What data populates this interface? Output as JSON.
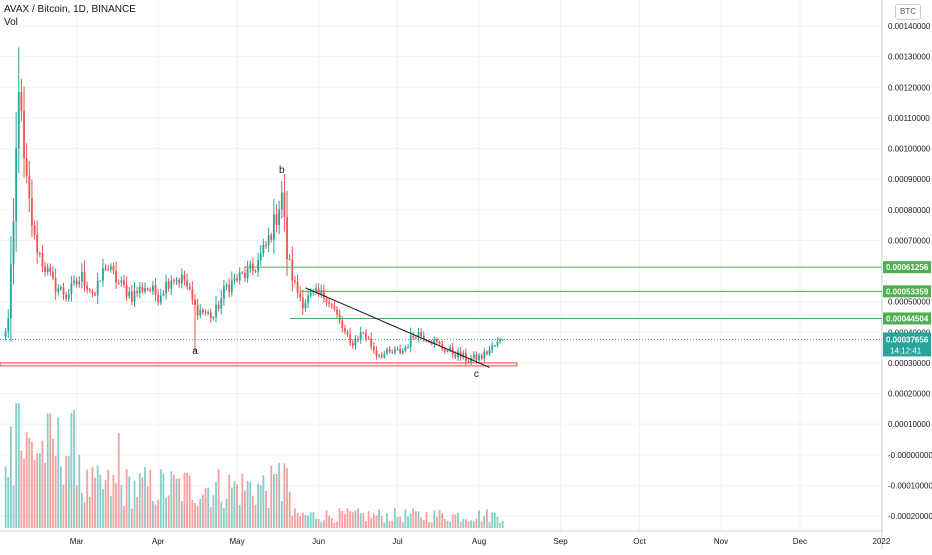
{
  "header": {
    "symbol_line": "AVAX / Bitcoin, 1D, BINANCE",
    "volume_label": "Vol"
  },
  "currency_badge": "BTC",
  "chart_data": {
    "type": "candlestick",
    "title": "AVAX / Bitcoin, 1D, BINANCE",
    "x_ticks": [
      "Mar",
      "Apr",
      "May",
      "Jun",
      "Jul",
      "Aug",
      "Sep",
      "Oct",
      "Nov",
      "Dec",
      "2022"
    ],
    "price_ticks": [
      "0.00140000",
      "0.00130000",
      "0.00120000",
      "0.00110000",
      "0.00100000",
      "0.00090000",
      "0.00080000",
      "0.00070000",
      "0.00050000",
      "0.00040000",
      "0.00030000",
      "0.00020000",
      "0.00010000",
      "-0.00000000",
      "-0.00010000",
      "-0.00020000"
    ],
    "price_ylim": [
      -0.0002,
      0.0014
    ],
    "horizontal_levels": [
      {
        "value": 0.00061256,
        "label": "0.00061256",
        "color": "#4caf50"
      },
      {
        "value": 0.00053359,
        "label": "0.00053359",
        "color": "#4caf50"
      },
      {
        "value": 0.00044504,
        "label": "0.00044504",
        "color": "#4caf50"
      }
    ],
    "current_price": {
      "value": 0.00037656,
      "label": "0.00037656",
      "countdown": "14:12:41",
      "color": "#26a69a"
    },
    "support_zone": {
      "from": 0.00029,
      "to": 0.0003,
      "color": "#ef5350"
    },
    "trendline": {
      "from": {
        "date": "2021-05-27",
        "value": 0.000545
      },
      "to": {
        "date": "2021-08-05",
        "value": 0.000285
      }
    },
    "annotations": [
      {
        "text": "a",
        "date": "2021-04-15"
      },
      {
        "text": "b",
        "date": "2021-05-18"
      },
      {
        "text": "c",
        "date": "2021-07-31"
      }
    ],
    "keypoints": [
      {
        "date": "2021-02-01",
        "close": 0.00038
      },
      {
        "date": "2021-02-03",
        "close": 0.00044
      },
      {
        "date": "2021-02-05",
        "close": 0.00075
      },
      {
        "date": "2021-02-07",
        "close": 0.00122
      },
      {
        "date": "2021-02-09",
        "close": 0.00095
      },
      {
        "date": "2021-02-11",
        "close": 0.00082
      },
      {
        "date": "2021-02-13",
        "close": 0.0007
      },
      {
        "date": "2021-02-16",
        "close": 0.00063
      },
      {
        "date": "2021-02-20",
        "close": 0.00056
      },
      {
        "date": "2021-02-25",
        "close": 0.00052
      },
      {
        "date": "2021-03-03",
        "close": 0.00058
      },
      {
        "date": "2021-03-08",
        "close": 0.00052
      },
      {
        "date": "2021-03-12",
        "close": 0.00062
      },
      {
        "date": "2021-03-17",
        "close": 0.00056
      },
      {
        "date": "2021-03-22",
        "close": 0.00052
      },
      {
        "date": "2021-03-27",
        "close": 0.00055
      },
      {
        "date": "2021-04-01",
        "close": 0.00052
      },
      {
        "date": "2021-04-06",
        "close": 0.00058
      },
      {
        "date": "2021-04-11",
        "close": 0.00057
      },
      {
        "date": "2021-04-15",
        "close": 0.00048
      },
      {
        "date": "2021-04-22",
        "close": 0.00045
      },
      {
        "date": "2021-04-27",
        "close": 0.00055
      },
      {
        "date": "2021-05-02",
        "close": 0.00058
      },
      {
        "date": "2021-05-07",
        "close": 0.0006
      },
      {
        "date": "2021-05-12",
        "close": 0.00068
      },
      {
        "date": "2021-05-16",
        "close": 0.00078
      },
      {
        "date": "2021-05-18",
        "close": 0.00086
      },
      {
        "date": "2021-05-20",
        "close": 0.00065
      },
      {
        "date": "2021-05-23",
        "close": 0.00055
      },
      {
        "date": "2021-05-26",
        "close": 0.0005
      },
      {
        "date": "2021-05-30",
        "close": 0.00052
      },
      {
        "date": "2021-06-04",
        "close": 0.00052
      },
      {
        "date": "2021-06-08",
        "close": 0.00045
      },
      {
        "date": "2021-06-13",
        "close": 0.00036
      },
      {
        "date": "2021-06-18",
        "close": 0.0004
      },
      {
        "date": "2021-06-23",
        "close": 0.00033
      },
      {
        "date": "2021-06-28",
        "close": 0.00033
      },
      {
        "date": "2021-07-03",
        "close": 0.00034
      },
      {
        "date": "2021-07-08",
        "close": 0.0004
      },
      {
        "date": "2021-07-13",
        "close": 0.00038
      },
      {
        "date": "2021-07-18",
        "close": 0.00035
      },
      {
        "date": "2021-07-23",
        "close": 0.00033
      },
      {
        "date": "2021-07-28",
        "close": 0.00031
      },
      {
        "date": "2021-08-02",
        "close": 0.00032
      },
      {
        "date": "2021-08-06",
        "close": 0.00035
      },
      {
        "date": "2021-08-10",
        "close": 0.00037656
      }
    ],
    "volume_colors": {
      "up": "#26a69a",
      "down": "#ef5350"
    },
    "grid": true
  }
}
